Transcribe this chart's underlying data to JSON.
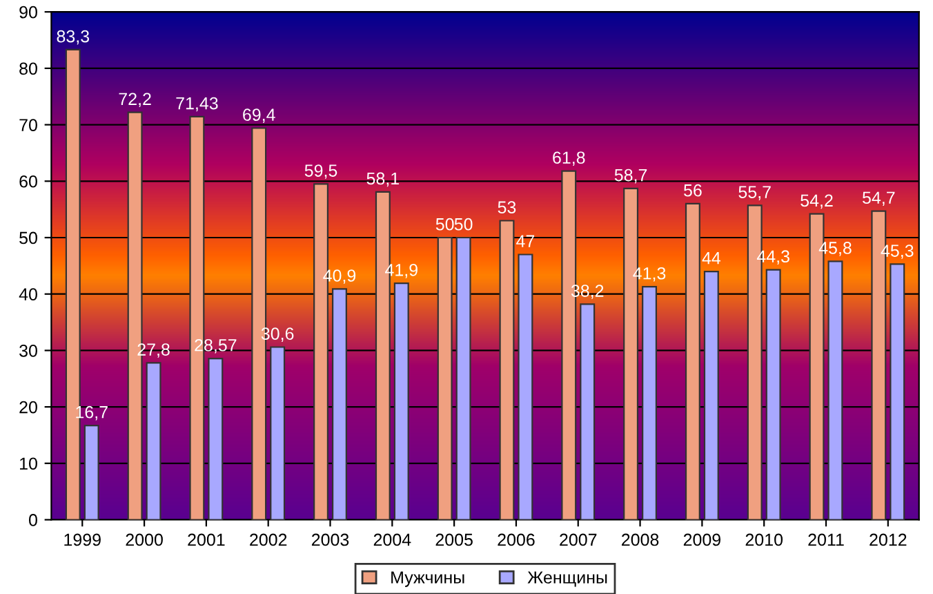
{
  "chart_data": {
    "type": "bar",
    "categories": [
      "1999",
      "2000",
      "2001",
      "2002",
      "2003",
      "2004",
      "2005",
      "2006",
      "2007",
      "2008",
      "2009",
      "2010",
      "2011",
      "2012"
    ],
    "series": [
      {
        "name": "Мужчины",
        "color": "#f0a080",
        "values": [
          83.3,
          72.2,
          71.43,
          69.4,
          59.5,
          58.1,
          50,
          53,
          61.8,
          58.7,
          56,
          55.7,
          54.2,
          54.7
        ],
        "value_labels": [
          "83,3",
          "72,2",
          "71,43",
          "69,4",
          "59,5",
          "58,1",
          "50",
          "53",
          "61,8",
          "58,7",
          "56",
          "55,7",
          "54,2",
          "54,7"
        ]
      },
      {
        "name": "Женщины",
        "color": "#a8a8ff",
        "values": [
          16.7,
          27.8,
          28.57,
          30.6,
          40.9,
          41.9,
          50,
          47,
          38.2,
          41.3,
          44,
          44.3,
          45.8,
          45.3
        ],
        "value_labels": [
          "16,7",
          "27,8",
          "28,57",
          "30,6",
          "40,9",
          "41,9",
          "50",
          "47",
          "38,2",
          "41,3",
          "44",
          "44,3",
          "45,8",
          "45,3"
        ]
      }
    ],
    "ylim": [
      0,
      90
    ],
    "yticks": [
      0,
      10,
      20,
      30,
      40,
      50,
      60,
      70,
      80,
      90
    ],
    "grid": "y",
    "legend": "bottom"
  }
}
